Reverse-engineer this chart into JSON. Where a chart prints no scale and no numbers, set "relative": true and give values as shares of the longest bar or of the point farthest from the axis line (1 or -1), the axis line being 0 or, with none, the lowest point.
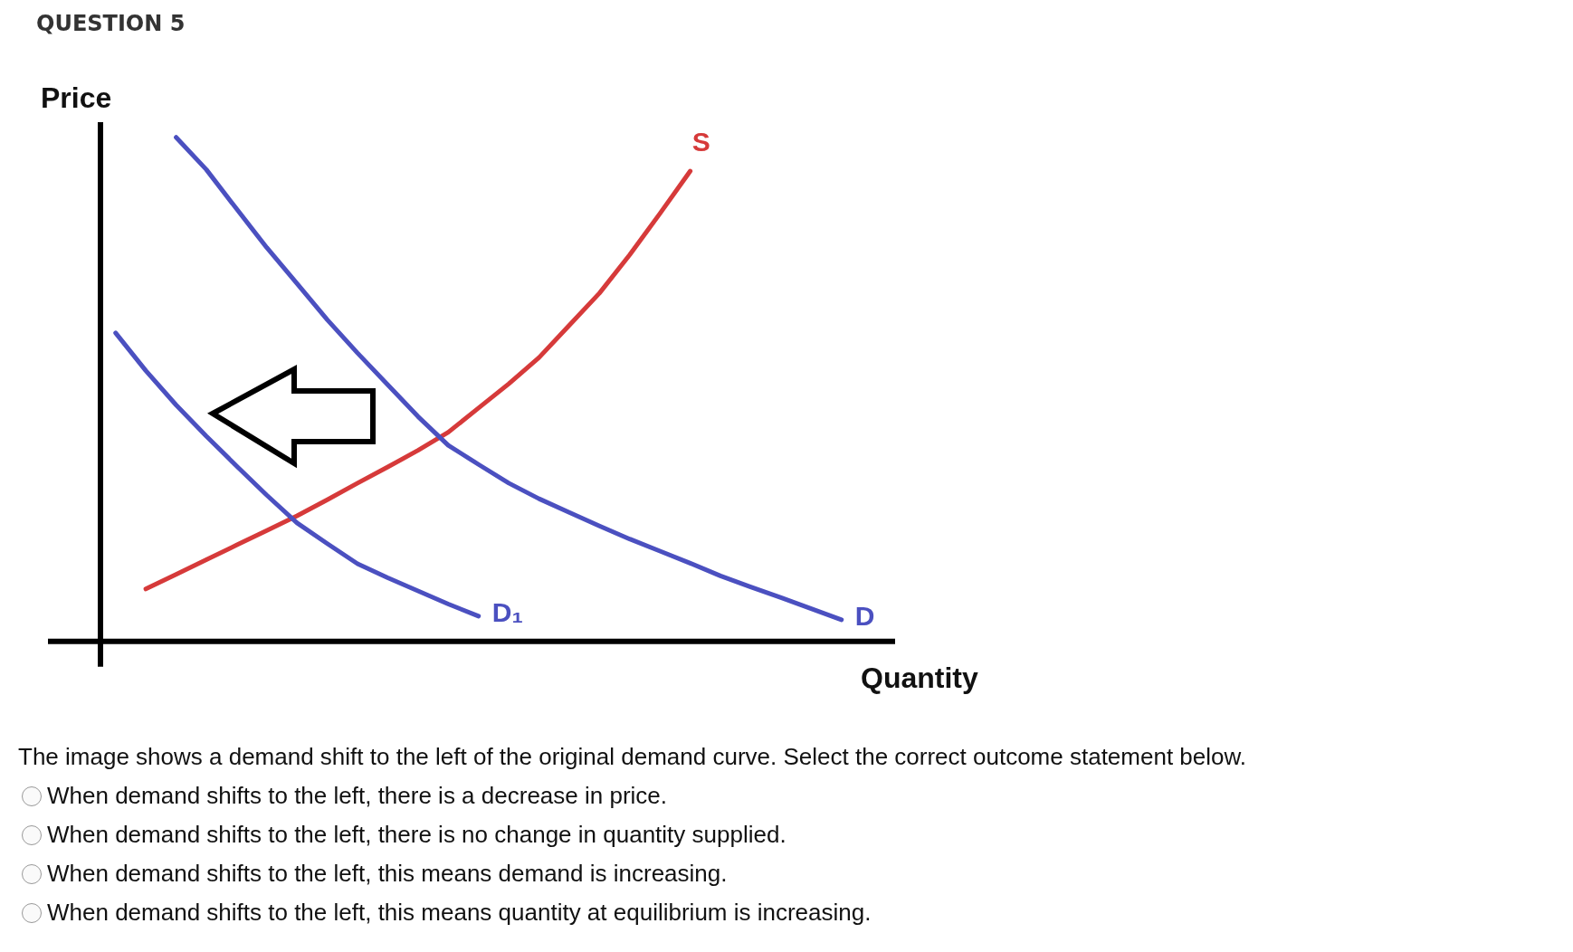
{
  "chart_data": {
    "type": "line",
    "title": "QUESTION 5",
    "xlabel": "Quantity",
    "ylabel": "Price",
    "relative": true,
    "tick_labels": false,
    "marker": "none",
    "line_style": "solid",
    "categories": [
      null,
      null,
      null,
      null,
      null,
      null,
      null,
      null,
      null,
      null,
      null,
      null,
      null,
      null,
      null,
      null,
      null,
      null,
      null,
      null,
      null,
      null,
      null,
      null,
      null
    ],
    "series": [
      {
        "name": "D",
        "color": "#4b50c0",
        "values": [
          null,
          null,
          1.0,
          0.936,
          0.858,
          0.781,
          0.71,
          0.638,
          0.572,
          0.509,
          0.446,
          0.389,
          0.351,
          0.314,
          0.283,
          0.256,
          0.229,
          0.203,
          0.179,
          0.155,
          0.13,
          0.108,
          0.087,
          0.065,
          0.043
        ]
      },
      {
        "name": "D₁",
        "color": "#4b50c0",
        "values": [
          0.612,
          0.537,
          0.469,
          0.407,
          0.348,
          0.29,
          0.235,
          0.194,
          0.154,
          0.126,
          0.1,
          0.074,
          0.05,
          null,
          null,
          null,
          null,
          null,
          null,
          null,
          null,
          null,
          null,
          null,
          null
        ]
      },
      {
        "name": "S",
        "color": "#d63a3a",
        "values": [
          null,
          0.104,
          0.133,
          0.162,
          0.191,
          0.22,
          0.249,
          0.281,
          0.314,
          0.346,
          0.379,
          0.415,
          0.463,
          0.511,
          0.563,
          0.627,
          0.691,
          0.767,
          0.849,
          0.933,
          null,
          null,
          null,
          null,
          null
        ]
      }
    ],
    "annotations": [
      "The image shows a demand shift to the left of the original demand curve. Select the correct outcome statement below.",
      "When demand shifts to the left, there is a decrease in price.",
      "When demand shifts to the left, there is no change in quantity supplied.",
      "When demand shifts to the left, this means demand is increasing.",
      "When demand shifts to the left, this means quantity at equilibrium is increasing."
    ]
  }
}
